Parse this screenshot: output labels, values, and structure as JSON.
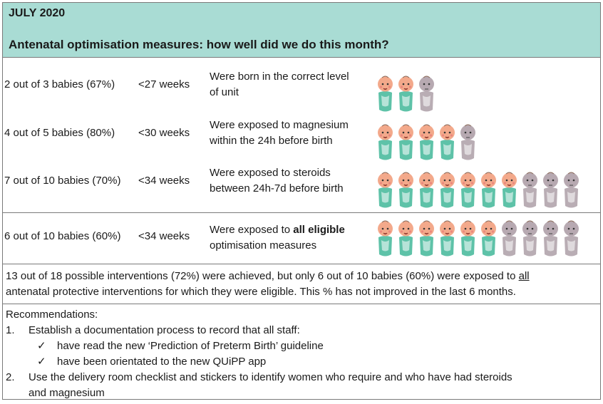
{
  "header": {
    "month": "JULY 2020",
    "title": "Antenatal optimisation measures: how well did we do this month?"
  },
  "colors": {
    "header_bg": "#a9dcd4",
    "achieved_skin": "#f3a98b",
    "achieved_wrap": "#5ec2a8",
    "not_achieved_skin": "#b7a9b1",
    "not_achieved_wrap": "#b9adb4"
  },
  "rows": [
    {
      "count": "2 out of 3 babies (67%)",
      "weeks": "<27 weeks",
      "desc_line1": "Were born in the correct level",
      "desc_line2": "of unit",
      "achieved": 2,
      "total": 3
    },
    {
      "count": "4 out of 5 babies (80%)",
      "weeks": "<30 weeks",
      "desc_line1": "Were exposed to magnesium",
      "desc_line2": "within the 24h before birth",
      "achieved": 4,
      "total": 5
    },
    {
      "count": "7 out of 10 babies (70%)",
      "weeks": "<34 weeks",
      "desc_line1": "Were exposed to steroids",
      "desc_line2": "between 24h-7d before birth",
      "achieved": 7,
      "total": 10
    },
    {
      "count": "6 out of 10 babies (60%)",
      "weeks": "<34 weeks",
      "desc_line1_pre": "Were exposed to ",
      "desc_line1_bold": "all eligible",
      "desc_line2": "optimisation measures",
      "achieved": 6,
      "total": 10
    }
  ],
  "summary": {
    "line1_pre": "13 out of 18 possible interventions (72%) were achieved, but only 6 out of 10 babies (60%) were exposed to ",
    "line1_underlined": "all",
    "line2": "antenatal protective interventions for which they were eligible. This % has not improved in the last 6 months."
  },
  "recommendations": {
    "heading": "Recommendations:",
    "item1_num": "1.",
    "item1_text": "Establish a documentation process to record that all staff:",
    "tick": "✓",
    "sub1": "have read the new ‘Prediction of Preterm Birth’ guideline",
    "sub2": "have been orientated to the new QUiPP app",
    "item2_num": "2.",
    "item2_line1": "Use the delivery room checklist and stickers to identify women who require and who have had steroids",
    "item2_line2": "and magnesium"
  }
}
